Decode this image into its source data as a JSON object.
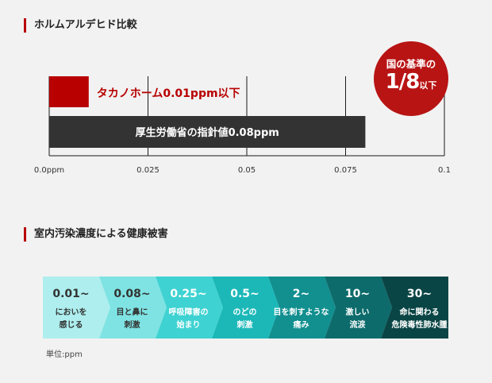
{
  "section1": {
    "title": "ホルムアルデヒド比較"
  },
  "section2": {
    "title": "室内汚染濃度による健康被害"
  },
  "badge": {
    "line1": "国の基準の",
    "big": "1/8",
    "small": "以下"
  },
  "colors": {
    "accent": "#b80000",
    "dark_bar": "#333333"
  },
  "chart_data": [
    {
      "type": "bar",
      "orientation": "horizontal",
      "categories": [
        "タカノホーム0.01ppm以下",
        "厚生労働省の指針値0.08ppm"
      ],
      "values": [
        0.01,
        0.08
      ],
      "colors": [
        "#b80000",
        "#333333"
      ],
      "xlim": [
        0,
        0.1
      ],
      "xticks": [
        0,
        0.025,
        0.05,
        0.075,
        0.1
      ],
      "xtick_labels": [
        "0.0ppm",
        "0.025",
        "0.05",
        "0.075",
        "0.1"
      ],
      "grid": true
    },
    {
      "type": "table",
      "unit_label": "単位:ppm",
      "stages": [
        {
          "value": "0.01~",
          "line1": "においを",
          "line2": "感じる",
          "color": "#aeeeee"
        },
        {
          "value": "0.08~",
          "line1": "目と鼻に",
          "line2": "刺激",
          "color": "#7fe3e3"
        },
        {
          "value": "0.25~",
          "line1": "呼吸障害の",
          "line2": "始まり",
          "color": "#3fd2d2"
        },
        {
          "value": "0.5~",
          "line1": "のどの",
          "line2": "刺激",
          "color": "#1cb8b8"
        },
        {
          "value": "2~",
          "line1": "目を刺すような",
          "line2": "痛み",
          "color": "#128f8f"
        },
        {
          "value": "10~",
          "line1": "激しい",
          "line2": "流涙",
          "color": "#0d6b6b"
        },
        {
          "value": "30~",
          "line1": "命に関わる",
          "line2": "危険毒性肺水腫",
          "color": "#0a4545"
        }
      ]
    }
  ]
}
